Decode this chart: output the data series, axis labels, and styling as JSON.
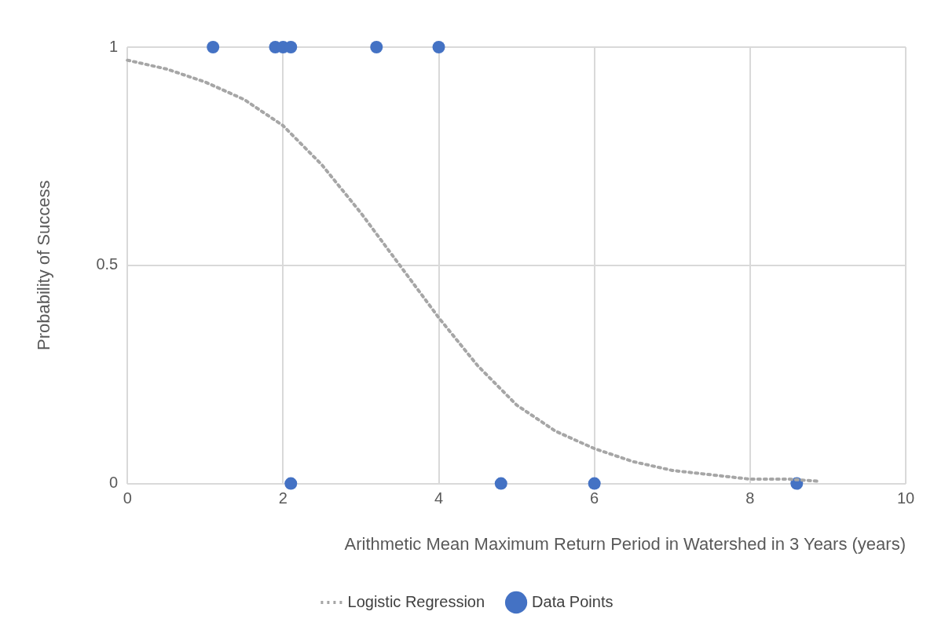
{
  "chart_data": {
    "type": "scatter",
    "xlabel": "Arithmetic Mean Maximum Return Period in Watershed in 3 Years (years)",
    "ylabel": "Probability of Success",
    "xlim": [
      0,
      10
    ],
    "xticks": [
      0,
      2,
      4,
      6,
      8,
      10
    ],
    "ylim": [
      0,
      1
    ],
    "yticks": [
      0,
      0.5,
      1
    ],
    "grid": true,
    "legend": "bottom",
    "series": [
      {
        "name": "Logistic Regression",
        "type": "line",
        "line_style": "dotted",
        "marker": "none",
        "color": "#a6a6a6",
        "x": [
          0,
          0.5,
          1,
          1.5,
          2,
          2.5,
          3,
          3.5,
          4,
          4.5,
          5,
          5.5,
          6,
          6.5,
          7,
          7.5,
          8,
          8.5,
          8.9
        ],
        "values": [
          0.97,
          0.95,
          0.92,
          0.88,
          0.82,
          0.73,
          0.62,
          0.5,
          0.38,
          0.27,
          0.18,
          0.12,
          0.08,
          0.05,
          0.03,
          0.02,
          0.01,
          0.01,
          0.005
        ]
      },
      {
        "name": "Data Points",
        "type": "scatter",
        "marker": "circle",
        "color": "#4472c4",
        "x": [
          1.1,
          1.9,
          2.0,
          2.1,
          3.2,
          4.0,
          2.1,
          4.8,
          6.0,
          8.6
        ],
        "values": [
          1,
          1,
          1,
          1,
          1,
          1,
          0,
          0,
          0,
          0
        ]
      }
    ]
  }
}
